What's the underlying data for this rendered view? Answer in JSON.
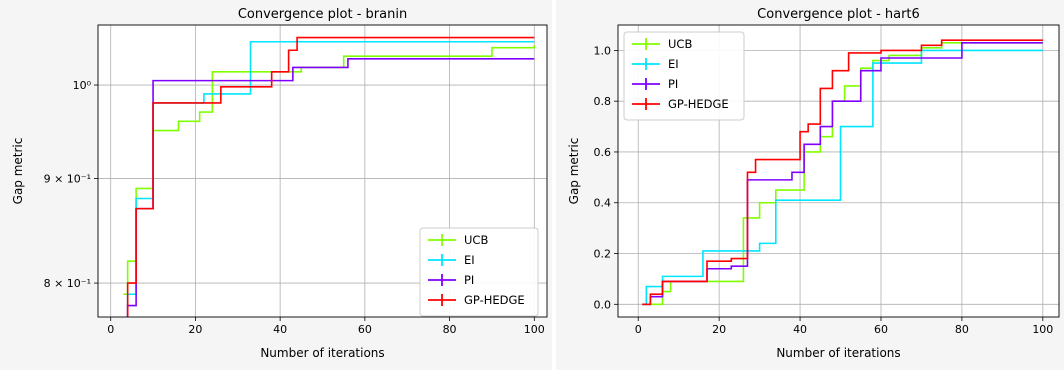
{
  "chart_data": [
    {
      "type": "line",
      "title": "Convergence plot - branin",
      "xlabel": "Number of iterations",
      "ylabel": "Gap metric",
      "yscale": "log",
      "xlim": [
        -3,
        103
      ],
      "ylim": [
        0.77,
        1.07
      ],
      "xticks": [
        0,
        20,
        40,
        60,
        80,
        100
      ],
      "xtick_labels": [
        "0",
        "20",
        "40",
        "60",
        "80",
        "100"
      ],
      "yticks": [
        0.8,
        0.9,
        1.0
      ],
      "ytick_labels": [
        "8 × 10⁻¹",
        "9 × 10⁻¹",
        "10⁰"
      ],
      "grid": true,
      "legend_position": "lower right",
      "series": [
        {
          "name": "UCB",
          "color": "#80ff00",
          "x": [
            3,
            4,
            6,
            10,
            16,
            21,
            24,
            45,
            55,
            90,
            100
          ],
          "y": [
            0.79,
            0.82,
            0.89,
            0.95,
            0.96,
            0.97,
            1.015,
            1.02,
            1.033,
            1.043,
            1.046
          ]
        },
        {
          "name": "EI",
          "color": "#00e6ff",
          "x": [
            3,
            4,
            6,
            10,
            22,
            33,
            44,
            100
          ],
          "y": [
            0.76,
            0.79,
            0.88,
            0.98,
            0.99,
            1.05,
            1.05,
            1.05
          ]
        },
        {
          "name": "PI",
          "color": "#8000ff",
          "x": [
            3,
            4,
            6,
            10,
            38,
            43,
            56,
            100
          ],
          "y": [
            0.76,
            0.78,
            0.87,
            1.005,
            1.005,
            1.02,
            1.03,
            1.03
          ]
        },
        {
          "name": "GP-HEDGE",
          "color": "#ff0000",
          "x": [
            3,
            4,
            6,
            10,
            26,
            38,
            42,
            44,
            100
          ],
          "y": [
            0.76,
            0.8,
            0.87,
            0.98,
            0.998,
            1.015,
            1.04,
            1.055,
            1.055
          ]
        }
      ]
    },
    {
      "type": "line",
      "title": "Convergence plot - hart6",
      "xlabel": "Number of iterations",
      "ylabel": "Gap metric",
      "yscale": "linear",
      "xlim": [
        -5,
        104
      ],
      "ylim": [
        -0.05,
        1.1
      ],
      "xticks": [
        0,
        20,
        40,
        60,
        80,
        100
      ],
      "xtick_labels": [
        "0",
        "20",
        "40",
        "60",
        "80",
        "100"
      ],
      "yticks": [
        0.0,
        0.2,
        0.4,
        0.6,
        0.8,
        1.0
      ],
      "ytick_labels": [
        "0.0",
        "0.2",
        "0.4",
        "0.6",
        "0.8",
        "1.0"
      ],
      "grid": true,
      "legend_position": "upper left",
      "series": [
        {
          "name": "UCB",
          "color": "#80ff00",
          "x": [
            1,
            3,
            6,
            8,
            17,
            22,
            26,
            30,
            34,
            41,
            45,
            48,
            51,
            55,
            58,
            62,
            70,
            75,
            100
          ],
          "y": [
            0.0,
            0.0,
            0.05,
            0.09,
            0.09,
            0.09,
            0.34,
            0.4,
            0.45,
            0.6,
            0.66,
            0.8,
            0.86,
            0.93,
            0.96,
            0.98,
            1.01,
            1.03,
            1.03
          ]
        },
        {
          "name": "EI",
          "color": "#00e6ff",
          "x": [
            1,
            2,
            6,
            16,
            25,
            30,
            34,
            47,
            50,
            58,
            70,
            100
          ],
          "y": [
            0.0,
            0.07,
            0.11,
            0.21,
            0.21,
            0.24,
            0.41,
            0.41,
            0.7,
            0.95,
            1.0,
            1.0
          ]
        },
        {
          "name": "PI",
          "color": "#8000ff",
          "x": [
            1,
            3,
            6,
            10,
            17,
            23,
            27,
            38,
            41,
            45,
            48,
            55,
            60,
            80,
            100
          ],
          "y": [
            0.0,
            0.03,
            0.09,
            0.09,
            0.14,
            0.15,
            0.49,
            0.52,
            0.63,
            0.7,
            0.8,
            0.92,
            0.97,
            1.03,
            1.03
          ]
        },
        {
          "name": "GP-HEDGE",
          "color": "#ff0000",
          "x": [
            1,
            3,
            6,
            17,
            23,
            27,
            29,
            40,
            42,
            45,
            48,
            52,
            60,
            70,
            75,
            100
          ],
          "y": [
            0.0,
            0.04,
            0.09,
            0.17,
            0.18,
            0.52,
            0.57,
            0.68,
            0.71,
            0.85,
            0.92,
            0.99,
            1.0,
            1.02,
            1.04,
            1.04
          ]
        }
      ]
    }
  ]
}
